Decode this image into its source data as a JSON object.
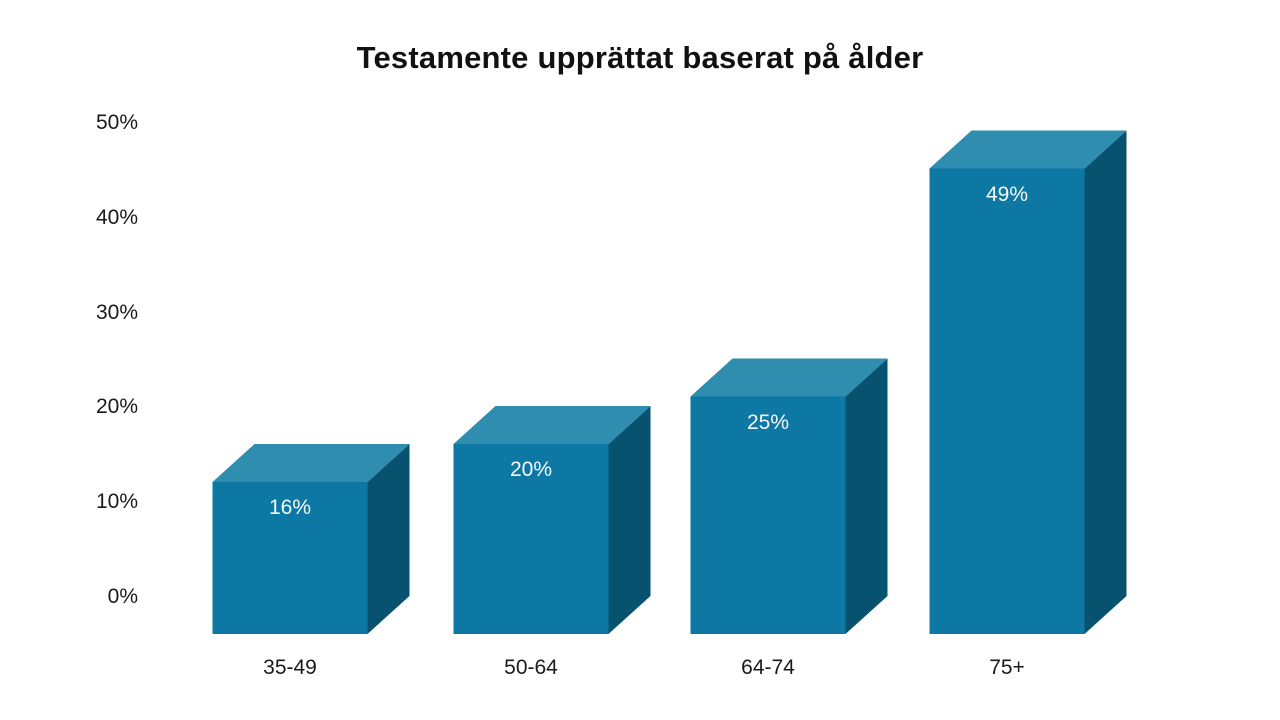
{
  "chart_data": {
    "type": "bar",
    "style": "3d",
    "title": "Testamente upprättat baserat på ålder",
    "categories": [
      "35-49",
      "50-64",
      "64-74",
      "75+"
    ],
    "values": [
      16,
      20,
      25,
      49
    ],
    "value_labels": [
      "16%",
      "20%",
      "25%",
      "49%"
    ],
    "yticks": [
      "0%",
      "10%",
      "20%",
      "30%",
      "40%",
      "50%"
    ],
    "ytick_values": [
      0,
      10,
      20,
      30,
      40,
      50
    ],
    "ylim": [
      0,
      50
    ],
    "xlabel": "",
    "ylabel": "",
    "grid": "off",
    "legend": "none",
    "background_color": "#ffffff",
    "title_color": "#111111",
    "axis_text_color": "#1a1a1a",
    "value_label_color": "#f6f9fa",
    "bar_colors": {
      "front": "#0e78a4",
      "top": "#2f8db0",
      "side": "#07536f"
    }
  }
}
